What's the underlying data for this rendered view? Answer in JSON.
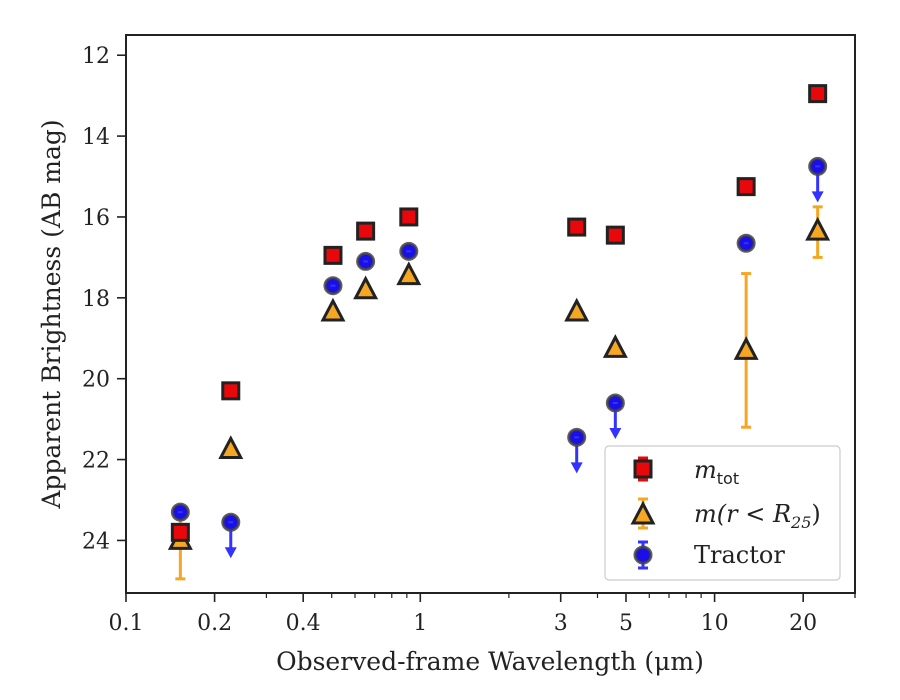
{
  "chart_data": {
    "type": "scatter",
    "title": "",
    "xlabel": "Observed-frame Wavelength (μm)",
    "ylabel": "Apparent Brightness (AB mag)",
    "x_scale": "log",
    "xlim": [
      0.1,
      30
    ],
    "ylim": [
      25.3,
      11.5
    ],
    "y_inverted": true,
    "x_ticks": [
      0.1,
      0.2,
      0.4,
      1,
      3,
      5,
      10,
      20
    ],
    "x_tick_labels": [
      "0.1",
      "0.2",
      "0.4",
      "1",
      "3",
      "5",
      "10",
      "20"
    ],
    "y_ticks": [
      12,
      14,
      16,
      18,
      20,
      22,
      24
    ],
    "y_tick_labels": [
      "12",
      "14",
      "16",
      "18",
      "20",
      "22",
      "24"
    ],
    "grid": false,
    "legend_position": "lower-right",
    "colors": {
      "m_tot": "#e8070a",
      "m_r25": "#f5a623",
      "tractor": "#1a0fe6",
      "tractor_arrow": "#3333ff",
      "edge": "#222222"
    },
    "series": [
      {
        "name": "m_tot",
        "legend_label": "m",
        "legend_subscript": "tot",
        "marker": "square",
        "points": [
          {
            "x": 0.153,
            "y": 23.8
          },
          {
            "x": 0.227,
            "y": 20.3
          },
          {
            "x": 0.505,
            "y": 16.95
          },
          {
            "x": 0.652,
            "y": 16.35
          },
          {
            "x": 0.914,
            "y": 16.0
          },
          {
            "x": 3.4,
            "y": 16.25
          },
          {
            "x": 4.6,
            "y": 16.45
          },
          {
            "x": 12.8,
            "y": 15.25
          },
          {
            "x": 22.4,
            "y": 12.95
          }
        ]
      },
      {
        "name": "m(r<R25)",
        "legend_label": "m(r < R",
        "legend_subscript": "25",
        "legend_suffix": ")",
        "marker": "triangle",
        "points": [
          {
            "x": 0.153,
            "y": 24.0,
            "yerr": [
              23.3,
              24.95
            ]
          },
          {
            "x": 0.227,
            "y": 21.75
          },
          {
            "x": 0.505,
            "y": 18.35
          },
          {
            "x": 0.652,
            "y": 17.8
          },
          {
            "x": 0.914,
            "y": 17.45
          },
          {
            "x": 3.4,
            "y": 18.35
          },
          {
            "x": 4.6,
            "y": 19.25
          },
          {
            "x": 12.8,
            "y": 19.3,
            "yerr": [
              17.4,
              21.2
            ]
          },
          {
            "x": 22.4,
            "y": 16.35,
            "yerr": [
              15.75,
              17.0
            ]
          }
        ]
      },
      {
        "name": "Tractor",
        "legend_label": "Tractor",
        "marker": "circle",
        "points": [
          {
            "x": 0.153,
            "y": 23.3,
            "upper_limit": false
          },
          {
            "x": 0.227,
            "y": 23.55,
            "upper_limit": true
          },
          {
            "x": 0.505,
            "y": 17.7,
            "upper_limit": false
          },
          {
            "x": 0.652,
            "y": 17.1,
            "upper_limit": false
          },
          {
            "x": 0.914,
            "y": 16.85,
            "upper_limit": false
          },
          {
            "x": 3.4,
            "y": 21.45,
            "upper_limit": true
          },
          {
            "x": 4.6,
            "y": 20.6,
            "upper_limit": true
          },
          {
            "x": 12.8,
            "y": 16.65,
            "upper_limit": false
          },
          {
            "x": 22.4,
            "y": 14.75,
            "upper_limit": true
          }
        ]
      }
    ]
  }
}
